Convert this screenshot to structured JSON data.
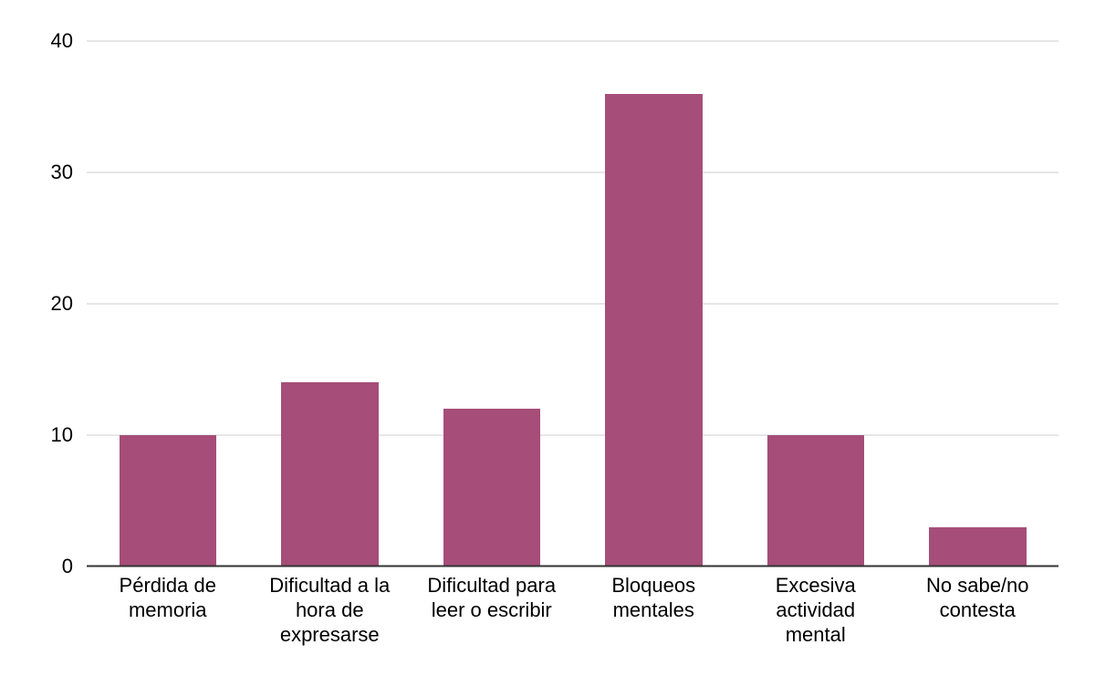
{
  "chart_data": {
    "type": "bar",
    "title": "",
    "xlabel": "",
    "ylabel": "",
    "categories": [
      "Pérdida de memoria",
      "Dificultad a la hora de expresarse",
      "Dificultad para leer o escribir",
      "Bloqueos mentales",
      "Excesiva actividad mental",
      "No sabe/no contesta"
    ],
    "values": [
      10,
      14,
      12,
      36,
      10,
      3
    ],
    "ylim": [
      0,
      40
    ],
    "yticks": [
      0,
      10,
      20,
      30,
      40
    ],
    "grid": true,
    "legend_position": "none",
    "bar_color": "#A64D79",
    "grid_color": "#CCCCCC",
    "axis_color": "#333333",
    "label_color": "#000000",
    "background_color": "#FFFFFF"
  }
}
